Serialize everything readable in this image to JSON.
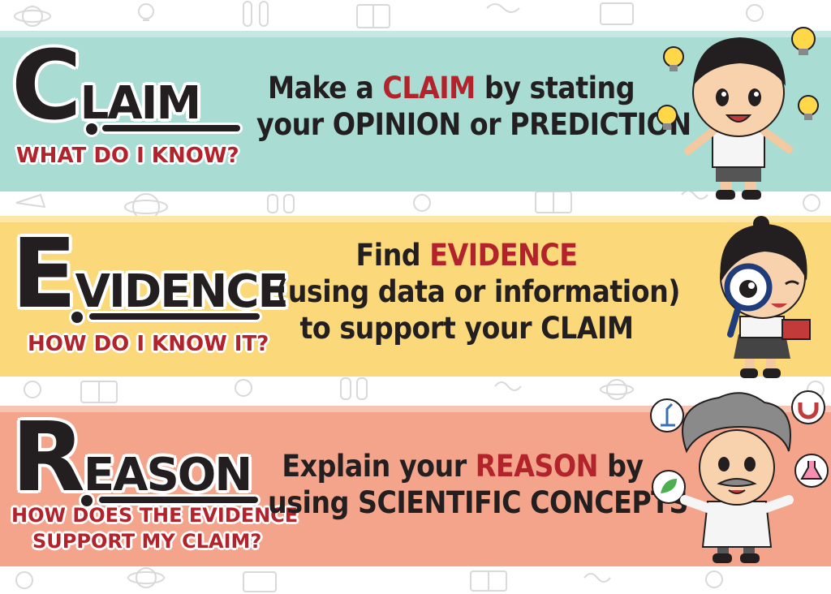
{
  "colors": {
    "claim_band": "#a9dcd3",
    "evidence_band": "#fbd97a",
    "reason_band": "#f3a48a",
    "title_black": "#231f20",
    "accent_red": "#b2232b"
  },
  "claim": {
    "title_initial": "C",
    "title_rest": "LAIM",
    "question": "WHAT DO I KNOW?",
    "desc_line1_pre": "Make a ",
    "desc_line1_highlight": "CLAIM",
    "desc_line1_post": " by stating",
    "desc_line2": "your OPINION or PREDICTION",
    "character_icon": "boy-student-with-lightbulbs-icon"
  },
  "evidence": {
    "title_initial": "E",
    "title_rest": "VIDENCE",
    "question": "HOW DO I KNOW IT?",
    "desc_line1_pre": "Find ",
    "desc_line1_highlight": "EVIDENCE",
    "desc_line2": "(using data or information)",
    "desc_line3": "to support your CLAIM",
    "character_icon": "girl-with-magnifying-glass-icon"
  },
  "reason": {
    "title_initial": "R",
    "title_rest": "EASON",
    "question_line1": "HOW DOES THE EVIDENCE",
    "question_line2": "SUPPORT MY CLAIM?",
    "desc_line1_pre": "Explain your ",
    "desc_line1_highlight": "REASON",
    "desc_line1_post": " by",
    "desc_line2": "using SCIENTIFIC CONCEPTS",
    "character_icon": "scientist-with-science-icons-icon"
  }
}
